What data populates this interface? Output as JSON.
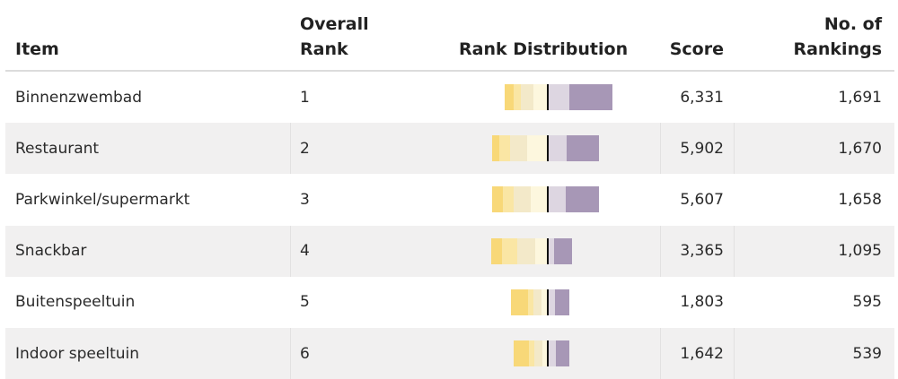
{
  "header": {
    "item": "Item",
    "rank_line1": "Overall",
    "rank_line2": "Rank",
    "distribution": "Rank Distribution",
    "score": "Score",
    "count_line1": "No. of",
    "count_line2": "Rankings"
  },
  "palette": [
    "#f8d878",
    "#fae6a4",
    "#f3e9c9",
    "#fdf7de",
    "#ddd6e1",
    "#a797b6"
  ],
  "rows": [
    {
      "item": "Binnenzwembad",
      "rank": "1",
      "score": "6,331",
      "count": "1,691",
      "distribution": [
        0.08,
        0.07,
        0.12,
        0.13,
        0.2,
        0.4
      ]
    },
    {
      "item": "Restaurant",
      "rank": "2",
      "score": "5,902",
      "count": "1,670",
      "distribution": [
        0.07,
        0.1,
        0.16,
        0.19,
        0.18,
        0.3
      ]
    },
    {
      "item": "Parkwinkel/supermarkt",
      "rank": "3",
      "score": "5,607",
      "count": "1,658",
      "distribution": [
        0.1,
        0.1,
        0.16,
        0.16,
        0.17,
        0.31
      ]
    },
    {
      "item": "Snackbar",
      "rank": "4",
      "score": "3,365",
      "count": "1,095",
      "distribution": [
        0.14,
        0.18,
        0.22,
        0.16,
        0.08,
        0.22
      ]
    },
    {
      "item": "Buitenspeeltuin",
      "rank": "5",
      "score": "1,803",
      "count": "595",
      "distribution": [
        0.29,
        0.1,
        0.14,
        0.1,
        0.12,
        0.25
      ]
    },
    {
      "item": "Indoor speeltuin",
      "rank": "6",
      "score": "1,642",
      "count": "539",
      "distribution": [
        0.27,
        0.1,
        0.14,
        0.1,
        0.15,
        0.24
      ]
    }
  ]
}
